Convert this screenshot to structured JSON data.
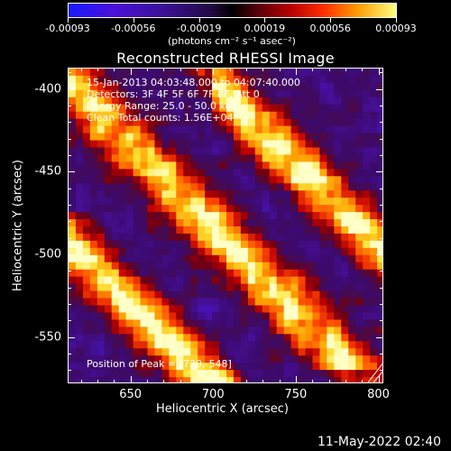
{
  "colorbar": {
    "ticks": [
      "-0.00093",
      "-0.00056",
      "-0.00019",
      "0.00019",
      "0.00056",
      "0.00093"
    ],
    "unit_label": "(photons cm⁻² s⁻¹ asec⁻²)"
  },
  "chart_data": {
    "type": "heatmap",
    "title": "Reconstructed RHESSI Image",
    "xlabel": "Heliocentric X (arcsec)",
    "ylabel": "Heliocentric Y (arcsec)",
    "x_ticks": [
      "650",
      "700",
      "750",
      "800"
    ],
    "y_ticks": [
      "-400",
      "-450",
      "-500",
      "-550"
    ],
    "xlim": [
      612,
      803
    ],
    "ylim": [
      -578,
      -387
    ],
    "color_range": [
      -0.00093,
      0.00093
    ],
    "colormap": "blue-black-red-yellow",
    "annotations": [
      "15-Jan-2013 04:03:48.000 to 04:07:40.000",
      "Detectors: 3F 4F 5F 6F 7F 8F, Att 0",
      "Energy Range: 25.0 - 50.0 keV",
      "Clean    Total counts: 1.56E+04"
    ],
    "peak_label": "Position of Peak = [739,-548]"
  },
  "footer": {
    "timestamp": "11-May-2022 02:40"
  }
}
